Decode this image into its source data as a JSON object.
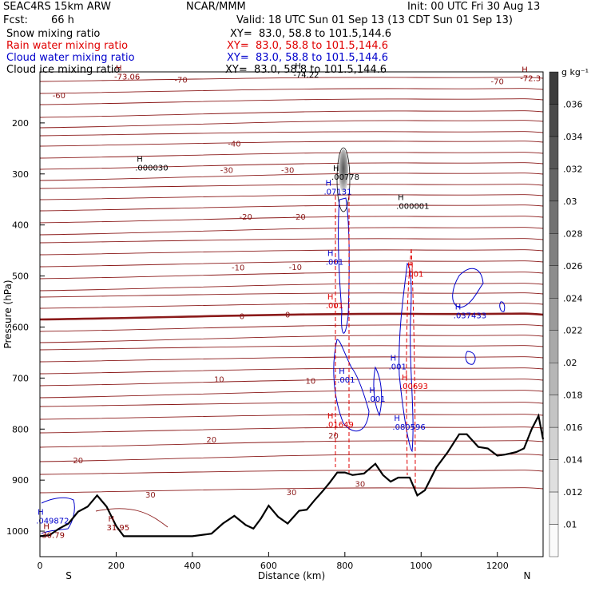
{
  "header": {
    "model": "SEAC4RS 15km ARW",
    "center": "NCAR/MMM",
    "init": "Init: 00 UTC Fri 30 Aug 13",
    "fcst_label": "Fcst:",
    "fcst_value": "66 h",
    "valid": "Valid: 18 UTC Sun 01 Sep 13 (13 CDT Sun 01 Sep 13)"
  },
  "fields": [
    {
      "name": "Snow mixing ratio",
      "xy": "XY=  83.0, 58.8 to 101.5,144.6",
      "color": "#000000"
    },
    {
      "name": "Rain water mixing ratio",
      "xy": "XY=  83.0, 58.8 to 101.5,144.6",
      "color": "#e00000"
    },
    {
      "name": "Cloud water mixing ratio",
      "xy": "XY=  83.0, 58.8 to 101.5,144.6",
      "color": "#0000cc"
    },
    {
      "name": "Cloud ice mixing ratio",
      "xy": "XY=  83.0, 58.8 to 101.5,144.6",
      "color": "#000000"
    }
  ],
  "colorbar": {
    "unit": "g kg⁻¹",
    "labels": [
      ".036",
      ".034",
      ".032",
      ".03",
      ".028",
      ".026",
      ".024",
      ".022",
      ".02",
      ".018",
      ".016",
      ".014",
      ".012",
      ".01"
    ]
  },
  "chart_data": {
    "type": "cross-section",
    "xlabel": "Distance (km)",
    "ylabel": "Pressure (hPa)",
    "xlim": [
      0,
      1320
    ],
    "ylim": [
      1050,
      100
    ],
    "x_ticks": [
      "0",
      "200",
      "400",
      "600",
      "800",
      "1000",
      "1200"
    ],
    "y_ticks": [
      "200",
      "300",
      "400",
      "500",
      "600",
      "700",
      "800",
      "900",
      "1000"
    ],
    "left_end": "S",
    "right_end": "N",
    "temperature_contours": [
      {
        "label": "-70",
        "x": 370,
        "p": 115
      },
      {
        "label": "-70",
        "x": 1200,
        "p": 118
      },
      {
        "label": "-60",
        "x": 50,
        "p": 145
      },
      {
        "label": "-40",
        "x": 510,
        "p": 240
      },
      {
        "label": "-30",
        "x": 490,
        "p": 292
      },
      {
        "label": "-30",
        "x": 650,
        "p": 292
      },
      {
        "label": "-20",
        "x": 540,
        "p": 383
      },
      {
        "label": "-20",
        "x": 680,
        "p": 383
      },
      {
        "label": "-10",
        "x": 520,
        "p": 483
      },
      {
        "label": "-10",
        "x": 670,
        "p": 482
      },
      {
        "label": "0",
        "x": 530,
        "p": 578
      },
      {
        "label": "0",
        "x": 650,
        "p": 575
      },
      {
        "label": "10",
        "x": 470,
        "p": 702
      },
      {
        "label": "10",
        "x": 710,
        "p": 705
      },
      {
        "label": "20",
        "x": 100,
        "p": 861
      },
      {
        "label": "20",
        "x": 450,
        "p": 820
      },
      {
        "label": "20",
        "x": 770,
        "p": 812
      },
      {
        "label": "30",
        "x": 290,
        "p": 928
      },
      {
        "label": "30",
        "x": 660,
        "p": 923
      },
      {
        "label": "30",
        "x": 840,
        "p": 907
      }
    ],
    "max_labels": [
      {
        "text": "-73.06",
        "x": 220,
        "p": 112,
        "color": "#8b0000"
      },
      {
        "text": "-74.22",
        "x": 690,
        "p": 108,
        "color": "#000000"
      },
      {
        "text": "-72.3",
        "x": 1285,
        "p": 115,
        "color": "#8b0000"
      },
      {
        "text": ".000030",
        "x": 275,
        "p": 290,
        "color": "#000000"
      },
      {
        "text": ".00778",
        "x": 790,
        "p": 308,
        "color": "#000000"
      },
      {
        "text": ".07131",
        "x": 770,
        "p": 337,
        "color": "#0000cc"
      },
      {
        "text": ".000001",
        "x": 960,
        "p": 365,
        "color": "#000000"
      },
      {
        "text": ".001",
        "x": 775,
        "p": 475,
        "color": "#0000cc"
      },
      {
        "text": ".001",
        "x": 985,
        "p": 498,
        "color": "#e00000"
      },
      {
        "text": ".001",
        "x": 775,
        "p": 560,
        "color": "#e00000"
      },
      {
        "text": ".037433",
        "x": 1110,
        "p": 580,
        "color": "#0000cc"
      },
      {
        "text": ".001",
        "x": 940,
        "p": 680,
        "color": "#0000cc"
      },
      {
        "text": ".001",
        "x": 805,
        "p": 706,
        "color": "#0000cc"
      },
      {
        "text": ".00693",
        "x": 970,
        "p": 718,
        "color": "#e00000"
      },
      {
        "text": ".001",
        "x": 885,
        "p": 743,
        "color": "#0000cc"
      },
      {
        "text": ".01649",
        "x": 775,
        "p": 793,
        "color": "#e00000"
      },
      {
        "text": ".080596",
        "x": 950,
        "p": 798,
        "color": "#0000cc"
      },
      {
        "text": ".049872",
        "x": 15,
        "p": 982,
        "color": "#0000cc"
      },
      {
        "text": "31.95",
        "x": 200,
        "p": 995,
        "color": "#8b0000"
      },
      {
        "text": "30.79",
        "x": 30,
        "p": 1010,
        "color": "#8b0000"
      }
    ],
    "terrain_profile": [
      [
        0,
        1010
      ],
      [
        25,
        1008
      ],
      [
        50,
        995
      ],
      [
        75,
        985
      ],
      [
        100,
        962
      ],
      [
        125,
        952
      ],
      [
        150,
        930
      ],
      [
        175,
        952
      ],
      [
        200,
        990
      ],
      [
        220,
        1010
      ],
      [
        300,
        1010
      ],
      [
        400,
        1010
      ],
      [
        450,
        1005
      ],
      [
        480,
        985
      ],
      [
        510,
        970
      ],
      [
        540,
        988
      ],
      [
        560,
        995
      ],
      [
        580,
        975
      ],
      [
        600,
        950
      ],
      [
        625,
        972
      ],
      [
        650,
        985
      ],
      [
        680,
        960
      ],
      [
        700,
        958
      ],
      [
        720,
        940
      ],
      [
        740,
        923
      ],
      [
        760,
        905
      ],
      [
        780,
        885
      ],
      [
        800,
        885
      ],
      [
        820,
        890
      ],
      [
        850,
        887
      ],
      [
        880,
        868
      ],
      [
        900,
        890
      ],
      [
        920,
        903
      ],
      [
        940,
        895
      ],
      [
        970,
        895
      ],
      [
        990,
        930
      ],
      [
        1010,
        920
      ],
      [
        1040,
        875
      ],
      [
        1070,
        845
      ],
      [
        1100,
        810
      ],
      [
        1120,
        810
      ],
      [
        1150,
        835
      ],
      [
        1175,
        838
      ],
      [
        1200,
        852
      ],
      [
        1220,
        850
      ],
      [
        1250,
        845
      ],
      [
        1270,
        838
      ],
      [
        1290,
        800
      ],
      [
        1308,
        774
      ],
      [
        1320,
        820
      ]
    ]
  }
}
